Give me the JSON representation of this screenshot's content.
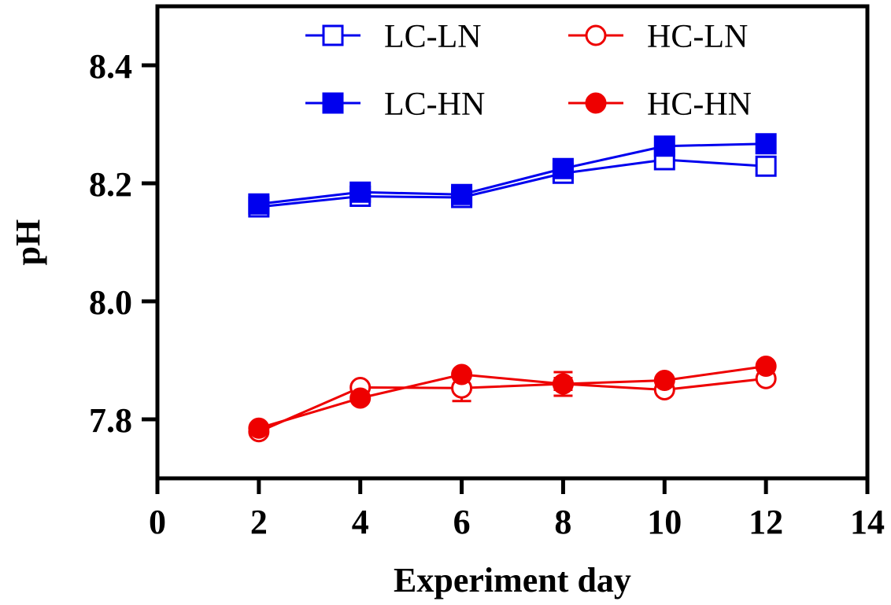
{
  "chart_data": {
    "type": "line",
    "title": "",
    "xlabel": "Experiment day",
    "ylabel": "pH",
    "xlim": [
      0,
      14
    ],
    "ylim": [
      7.7,
      8.5
    ],
    "xticks": [
      0,
      2,
      4,
      6,
      8,
      10,
      12,
      14
    ],
    "xtick_labels": [
      "0",
      "2",
      "4",
      "6",
      "8",
      "10",
      "12",
      "14"
    ],
    "yticks": [
      7.8,
      8.0,
      8.2,
      8.4
    ],
    "ytick_labels": [
      "7.8",
      "8.0",
      "8.2",
      "8.4"
    ],
    "grid": false,
    "legend_position": "top",
    "x": [
      2,
      4,
      6,
      8,
      10,
      12
    ],
    "series": [
      {
        "name": "LC-LN",
        "color": "#0000ee",
        "marker": "square",
        "filled": false,
        "values": [
          8.16,
          8.178,
          8.176,
          8.217,
          8.24,
          8.229
        ],
        "errors": [
          0.003,
          0.004,
          0.004,
          0.005,
          0.005,
          0.006
        ]
      },
      {
        "name": "HC-LN",
        "color": "#ee0000",
        "marker": "circle",
        "filled": false,
        "values": [
          7.779,
          7.854,
          7.853,
          7.86,
          7.85,
          7.869
        ],
        "errors": [
          0.004,
          0.004,
          0.022,
          0.01,
          0.005,
          0.005
        ]
      },
      {
        "name": "LC-HN",
        "color": "#0000ee",
        "marker": "square",
        "filled": true,
        "values": [
          8.165,
          8.185,
          8.181,
          8.225,
          8.263,
          8.267
        ],
        "errors": [
          0.004,
          0.004,
          0.004,
          0.004,
          0.004,
          0.004
        ]
      },
      {
        "name": "HC-HN",
        "color": "#ee0000",
        "marker": "circle",
        "filled": true,
        "values": [
          7.785,
          7.836,
          7.876,
          7.86,
          7.866,
          7.89
        ],
        "errors": [
          0.004,
          0.005,
          0.005,
          0.02,
          0.004,
          0.004
        ]
      }
    ]
  }
}
